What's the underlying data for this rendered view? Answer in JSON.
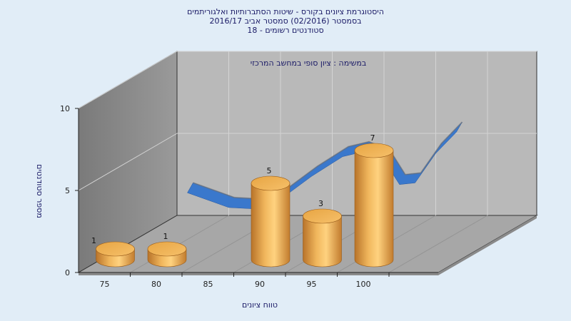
{
  "chart_data": {
    "type": "bar",
    "title_lines": [
      "היסטוגרמת ציונים בקורס - שיטות הסתברותיות ואלגוריתמים",
      "בסמסטר  (02/2016)  סמסטר אביב 2016/17",
      "סטודנטים רשומים - 18"
    ],
    "annotation": "במשימה : ציון סופי במחשב המרכזי",
    "xlabel": "טווח ציונים",
    "ylabel": "מספר סטודנטים",
    "x_ticks": [
      "75",
      "80",
      "85",
      "90",
      "95",
      "100"
    ],
    "y_ticks": [
      "0",
      "5",
      "10"
    ],
    "ylim": [
      0,
      10
    ],
    "categories": [
      "75",
      "80",
      "90",
      "95",
      "100"
    ],
    "values": [
      1,
      1,
      5,
      3,
      7
    ],
    "data_labels": [
      "1",
      "1",
      "5",
      "3",
      "7"
    ],
    "overlay_curve": {
      "type": "area",
      "color": "#3a78cc",
      "points": [
        [
          79,
          4.6
        ],
        [
          83,
          3.7
        ],
        [
          86,
          3.6
        ],
        [
          88,
          4.2
        ],
        [
          91,
          5.6
        ],
        [
          94,
          6.8
        ],
        [
          96,
          7.1
        ],
        [
          98,
          6.6
        ],
        [
          99.5,
          5.1
        ],
        [
          101,
          5.2
        ],
        [
          103,
          7.0
        ],
        [
          105,
          8.3
        ]
      ]
    },
    "bar_color": "#e4a03c",
    "grid": true,
    "legend": "none"
  }
}
